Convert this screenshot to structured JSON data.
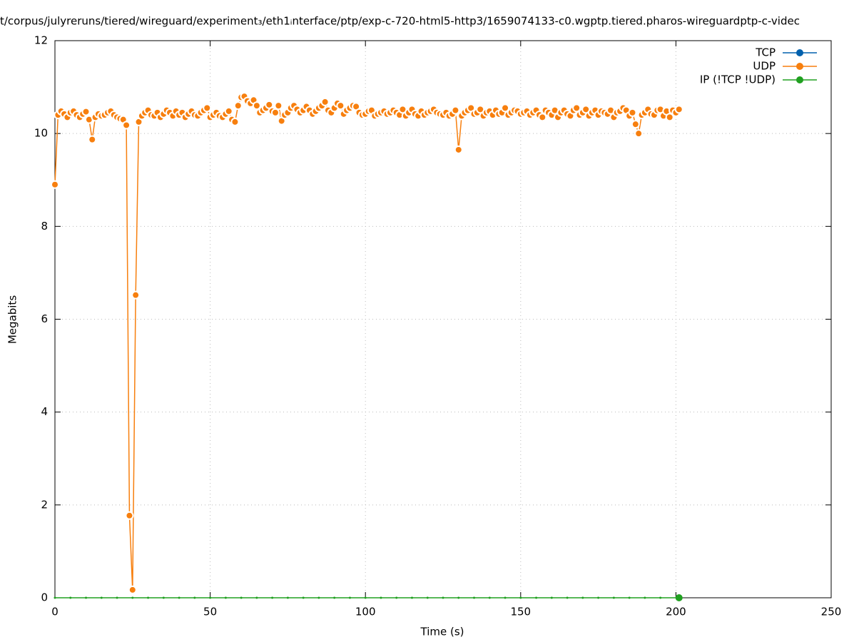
{
  "chart_data": {
    "type": "line",
    "title": "t/corpus/julyreruns/tiered/wireguard/experiment₃/eth1ᵢnterface/ptp/exp-c-720-html5-http3/1659074133-c0.wgptp.tiered.pharos-wireguardptp-c-videc",
    "xlabel": "Time (s)",
    "ylabel": "Megabits",
    "xlim": [
      0,
      250
    ],
    "xticks": [
      0,
      50,
      100,
      150,
      200,
      250
    ],
    "ylim": [
      0,
      12
    ],
    "yticks": [
      0,
      2,
      4,
      6,
      8,
      10,
      12
    ],
    "grid": true,
    "legend": "top-right",
    "series": [
      {
        "name": "TCP",
        "color": "#0060ad",
        "x": [],
        "values": []
      },
      {
        "name": "UDP",
        "color": "#f77f0e",
        "x": [
          0,
          1,
          2,
          3,
          4,
          5,
          6,
          7,
          8,
          9,
          10,
          11,
          12,
          13,
          14,
          15,
          16,
          17,
          18,
          19,
          20,
          21,
          22,
          23,
          24,
          25,
          26,
          27,
          28,
          29,
          30,
          31,
          32,
          33,
          34,
          35,
          36,
          37,
          38,
          39,
          40,
          41,
          42,
          43,
          44,
          45,
          46,
          47,
          48,
          49,
          50,
          51,
          52,
          53,
          54,
          55,
          56,
          57,
          58,
          59,
          60,
          61,
          62,
          63,
          64,
          65,
          66,
          67,
          68,
          69,
          70,
          71,
          72,
          73,
          74,
          75,
          76,
          77,
          78,
          79,
          80,
          81,
          82,
          83,
          84,
          85,
          86,
          87,
          88,
          89,
          90,
          91,
          92,
          93,
          94,
          95,
          96,
          97,
          98,
          99,
          100,
          101,
          102,
          103,
          104,
          105,
          106,
          107,
          108,
          109,
          110,
          111,
          112,
          113,
          114,
          115,
          116,
          117,
          118,
          119,
          120,
          121,
          122,
          123,
          124,
          125,
          126,
          127,
          128,
          129,
          130,
          131,
          132,
          133,
          134,
          135,
          136,
          137,
          138,
          139,
          140,
          141,
          142,
          143,
          144,
          145,
          146,
          147,
          148,
          149,
          150,
          151,
          152,
          153,
          154,
          155,
          156,
          157,
          158,
          159,
          160,
          161,
          162,
          163,
          164,
          165,
          166,
          167,
          168,
          169,
          170,
          171,
          172,
          173,
          174,
          175,
          176,
          177,
          178,
          179,
          180,
          181,
          182,
          183,
          184,
          185,
          186,
          187,
          188,
          189,
          190,
          191,
          192,
          193,
          194,
          195,
          196,
          197,
          198,
          199,
          200,
          201
        ],
        "values": [
          8.9,
          10.4,
          10.48,
          10.42,
          10.35,
          10.45,
          10.48,
          10.4,
          10.35,
          10.42,
          10.47,
          10.3,
          9.87,
          10.35,
          10.42,
          10.38,
          10.4,
          10.45,
          10.48,
          10.4,
          10.35,
          10.32,
          10.3,
          10.18,
          1.77,
          0.17,
          6.52,
          10.25,
          10.38,
          10.45,
          10.5,
          10.4,
          10.38,
          10.45,
          10.35,
          10.42,
          10.5,
          10.45,
          10.38,
          10.48,
          10.4,
          10.45,
          10.35,
          10.42,
          10.48,
          10.4,
          10.38,
          10.45,
          10.5,
          10.55,
          10.35,
          10.4,
          10.45,
          10.38,
          10.35,
          10.42,
          10.48,
          10.3,
          10.25,
          10.6,
          10.78,
          10.8,
          10.7,
          10.65,
          10.72,
          10.6,
          10.45,
          10.5,
          10.55,
          10.62,
          10.48,
          10.45,
          10.6,
          10.27,
          10.4,
          10.45,
          10.55,
          10.6,
          10.52,
          10.45,
          10.5,
          10.58,
          10.5,
          10.42,
          10.48,
          10.55,
          10.6,
          10.68,
          10.5,
          10.45,
          10.55,
          10.65,
          10.6,
          10.42,
          10.5,
          10.55,
          10.6,
          10.58,
          10.45,
          10.4,
          10.42,
          10.48,
          10.5,
          10.38,
          10.42,
          10.45,
          10.48,
          10.42,
          10.45,
          10.5,
          10.45,
          10.4,
          10.52,
          10.38,
          10.45,
          10.52,
          10.42,
          10.38,
          10.48,
          10.4,
          10.45,
          10.48,
          10.52,
          10.45,
          10.42,
          10.4,
          10.45,
          10.38,
          10.42,
          10.5,
          9.65,
          10.38,
          10.45,
          10.5,
          10.55,
          10.42,
          10.45,
          10.52,
          10.38,
          10.45,
          10.48,
          10.4,
          10.5,
          10.42,
          10.45,
          10.55,
          10.4,
          10.45,
          10.5,
          10.48,
          10.42,
          10.45,
          10.48,
          10.4,
          10.45,
          10.5,
          10.4,
          10.35,
          10.5,
          10.45,
          10.4,
          10.5,
          10.35,
          10.45,
          10.5,
          10.42,
          10.38,
          10.5,
          10.55,
          10.4,
          10.45,
          10.52,
          10.38,
          10.45,
          10.5,
          10.4,
          10.48,
          10.45,
          10.42,
          10.5,
          10.35,
          10.45,
          10.48,
          10.55,
          10.5,
          10.38,
          10.45,
          10.2,
          10.0,
          10.4,
          10.45,
          10.52,
          10.42,
          10.4,
          10.5,
          10.52,
          10.38,
          10.48,
          10.35,
          10.5,
          10.45,
          10.52
        ]
      },
      {
        "name": "IP (!TCP  !UDP)",
        "color": "#20a020",
        "x": [
          0,
          5,
          10,
          15,
          20,
          25,
          30,
          35,
          40,
          45,
          50,
          55,
          60,
          65,
          70,
          75,
          80,
          85,
          90,
          95,
          100,
          105,
          110,
          115,
          120,
          125,
          130,
          135,
          140,
          145,
          150,
          155,
          160,
          165,
          170,
          175,
          180,
          185,
          190,
          195,
          201
        ],
        "values": [
          0,
          0,
          0,
          0,
          0,
          0,
          0,
          0,
          0,
          0,
          0,
          0,
          0,
          0,
          0,
          0,
          0,
          0,
          0,
          0,
          0,
          0,
          0,
          0,
          0,
          0,
          0,
          0,
          0,
          0,
          0,
          0,
          0,
          0,
          0,
          0,
          0,
          0,
          0,
          0,
          0
        ]
      }
    ]
  }
}
